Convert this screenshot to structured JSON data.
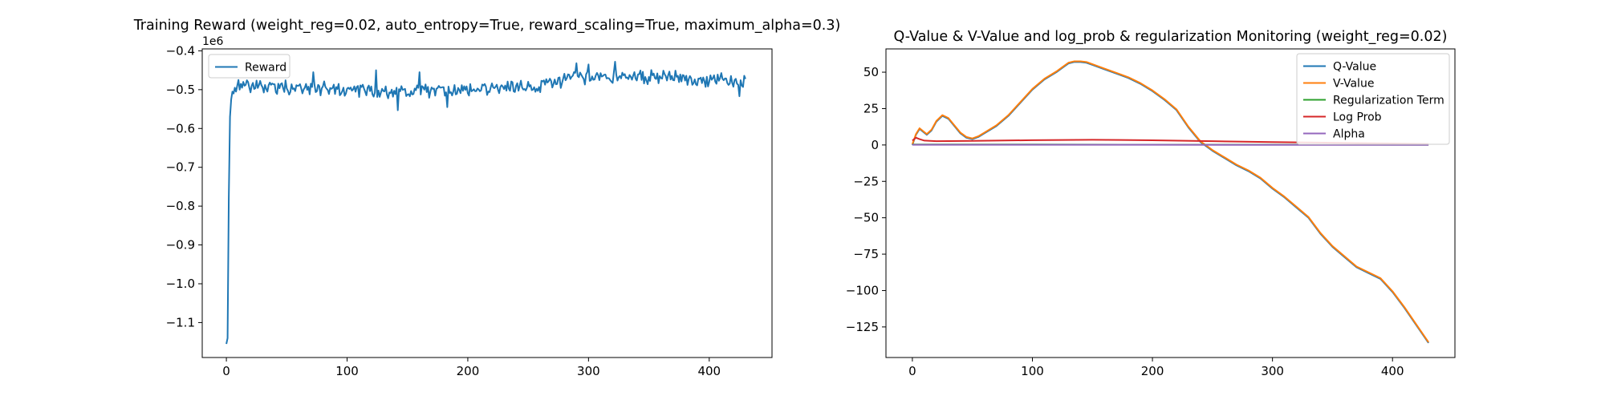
{
  "chart_data": [
    {
      "type": "line",
      "title": "Training Reward (weight_reg=0.02, auto_entropy=True, reward_scaling=True, maximum_alpha=0.3)",
      "xlabel": "",
      "ylabel": "",
      "y_offset_label": "1e6",
      "xlim": [
        -20,
        452
      ],
      "ylim": [
        -1.19,
        -0.395
      ],
      "xticks": [
        0,
        100,
        200,
        300,
        400
      ],
      "yticks": [
        -1.1,
        -1.0,
        -0.9,
        -0.8,
        -0.7,
        -0.6,
        -0.5,
        -0.4
      ],
      "xtick_labels": [
        "0",
        "100",
        "200",
        "300",
        "400"
      ],
      "ytick_labels": [
        "−1.1",
        "−1.0",
        "−0.9",
        "−0.8",
        "−0.7",
        "−0.6",
        "−0.5",
        "−0.4"
      ],
      "legend_position": "upper-left",
      "grid": false,
      "series": [
        {
          "name": "Reward",
          "color": "#1f77b4",
          "x_start": 0,
          "x_end": 430,
          "head": [
            [
              0,
              -1.155
            ],
            [
              1,
              -1.14
            ],
            [
              2,
              -0.78
            ],
            [
              3,
              -0.57
            ],
            [
              4,
              -0.525
            ],
            [
              5,
              -0.505
            ],
            [
              6,
              -0.51
            ],
            [
              7,
              -0.495
            ],
            [
              8,
              -0.505
            ],
            [
              9,
              -0.49
            ],
            [
              10,
              -0.475
            ],
            [
              11,
              -0.5
            ],
            [
              12,
              -0.485
            ],
            [
              13,
              -0.495
            ],
            [
              14,
              -0.48
            ],
            [
              15,
              -0.49
            ]
          ],
          "trend": [
            [
              15,
              -0.49
            ],
            [
              60,
              -0.495
            ],
            [
              150,
              -0.505
            ],
            [
              250,
              -0.495
            ],
            [
              290,
              -0.47
            ],
            [
              340,
              -0.465
            ],
            [
              380,
              -0.47
            ],
            [
              430,
              -0.48
            ]
          ],
          "noise_amplitude": 0.014,
          "spikes": [
            [
              72,
              -0.455
            ],
            [
              124,
              -0.45
            ],
            [
              142,
              -0.553
            ],
            [
              160,
              -0.455
            ],
            [
              183,
              -0.545
            ],
            [
              290,
              -0.432
            ],
            [
              300,
              -0.435
            ],
            [
              322,
              -0.428
            ],
            [
              425,
              -0.517
            ]
          ]
        }
      ]
    },
    {
      "type": "line",
      "title": "Q-Value & V-Value and log_prob & regularization Monitoring (weight_reg=0.02)",
      "xlabel": "",
      "ylabel": "",
      "xlim": [
        -22,
        452
      ],
      "ylim": [
        -146,
        66
      ],
      "xticks": [
        0,
        100,
        200,
        300,
        400
      ],
      "yticks": [
        -125,
        -100,
        -75,
        -50,
        -25,
        0,
        25,
        50
      ],
      "xtick_labels": [
        "0",
        "100",
        "200",
        "300",
        "400"
      ],
      "ytick_labels": [
        "−125",
        "−100",
        "−75",
        "−50",
        "−25",
        "0",
        "25",
        "50"
      ],
      "legend_position": "upper-right",
      "grid": false,
      "series": [
        {
          "name": "Q-Value",
          "color": "#1f77b4",
          "points": [
            [
              0,
              0
            ],
            [
              3,
              7
            ],
            [
              6,
              11
            ],
            [
              9,
              9
            ],
            [
              12,
              7
            ],
            [
              16,
              10
            ],
            [
              20,
              16
            ],
            [
              25,
              20
            ],
            [
              30,
              18
            ],
            [
              35,
              13
            ],
            [
              40,
              8
            ],
            [
              45,
              5
            ],
            [
              50,
              4
            ],
            [
              55,
              5.5
            ],
            [
              60,
              8
            ],
            [
              70,
              13
            ],
            [
              80,
              20
            ],
            [
              90,
              29
            ],
            [
              100,
              38
            ],
            [
              110,
              45
            ],
            [
              120,
              50
            ],
            [
              125,
              53
            ],
            [
              130,
              56
            ],
            [
              135,
              57
            ],
            [
              140,
              57
            ],
            [
              145,
              56.5
            ],
            [
              150,
              55
            ],
            [
              160,
              52
            ],
            [
              170,
              49
            ],
            [
              180,
              46
            ],
            [
              190,
              42
            ],
            [
              200,
              37
            ],
            [
              210,
              31
            ],
            [
              220,
              24
            ],
            [
              230,
              12
            ],
            [
              240,
              2
            ],
            [
              250,
              -4
            ],
            [
              260,
              -9
            ],
            [
              270,
              -14
            ],
            [
              280,
              -18
            ],
            [
              290,
              -23
            ],
            [
              300,
              -30
            ],
            [
              310,
              -36
            ],
            [
              320,
              -43
            ],
            [
              330,
              -50
            ],
            [
              340,
              -61
            ],
            [
              350,
              -70
            ],
            [
              360,
              -77
            ],
            [
              370,
              -84
            ],
            [
              380,
              -88
            ],
            [
              390,
              -92
            ],
            [
              400,
              -101
            ],
            [
              410,
              -112
            ],
            [
              420,
              -124
            ],
            [
              430,
              -136
            ]
          ]
        },
        {
          "name": "V-Value",
          "color": "#ff7f0e",
          "points": [
            [
              0,
              0.5
            ],
            [
              3,
              7.5
            ],
            [
              6,
              11.5
            ],
            [
              9,
              9.5
            ],
            [
              12,
              7.5
            ],
            [
              16,
              10.5
            ],
            [
              20,
              16.5
            ],
            [
              25,
              20.5
            ],
            [
              30,
              18.5
            ],
            [
              35,
              13.5
            ],
            [
              40,
              8.5
            ],
            [
              45,
              5.5
            ],
            [
              50,
              4.5
            ],
            [
              55,
              6
            ],
            [
              60,
              8.5
            ],
            [
              70,
              13.5
            ],
            [
              80,
              20.5
            ],
            [
              90,
              29.5
            ],
            [
              100,
              38.5
            ],
            [
              110,
              45.5
            ],
            [
              120,
              50.5
            ],
            [
              125,
              53.5
            ],
            [
              130,
              56.5
            ],
            [
              135,
              57.5
            ],
            [
              140,
              57.5
            ],
            [
              145,
              57
            ],
            [
              150,
              55.5
            ],
            [
              160,
              52.5
            ],
            [
              170,
              49.5
            ],
            [
              180,
              46.5
            ],
            [
              190,
              42.5
            ],
            [
              200,
              37.5
            ],
            [
              210,
              31.5
            ],
            [
              220,
              24.5
            ],
            [
              230,
              12.5
            ],
            [
              240,
              2.5
            ],
            [
              250,
              -3.5
            ],
            [
              260,
              -8.5
            ],
            [
              270,
              -13.5
            ],
            [
              280,
              -17.5
            ],
            [
              290,
              -22.5
            ],
            [
              300,
              -29.5
            ],
            [
              310,
              -35.5
            ],
            [
              320,
              -42.5
            ],
            [
              330,
              -49.5
            ],
            [
              340,
              -60.5
            ],
            [
              350,
              -69.5
            ],
            [
              360,
              -76.5
            ],
            [
              370,
              -83.5
            ],
            [
              380,
              -87.5
            ],
            [
              390,
              -91.5
            ],
            [
              400,
              -100.5
            ],
            [
              410,
              -111.5
            ],
            [
              420,
              -123.5
            ],
            [
              430,
              -135.5
            ]
          ]
        },
        {
          "name": "Regularization Term",
          "color": "#2ca02c",
          "points": [
            [
              0,
              0.3
            ],
            [
              100,
              0.3
            ],
            [
              200,
              0.2
            ],
            [
              300,
              0.2
            ],
            [
              430,
              0.1
            ]
          ]
        },
        {
          "name": "Log Prob",
          "color": "#d62728",
          "points": [
            [
              0,
              3
            ],
            [
              3,
              5
            ],
            [
              6,
              4
            ],
            [
              10,
              3
            ],
            [
              20,
              2.6
            ],
            [
              50,
              2.8
            ],
            [
              100,
              3.3
            ],
            [
              150,
              3.6
            ],
            [
              200,
              3.2
            ],
            [
              250,
              2.6
            ],
            [
              300,
              2.0
            ],
            [
              350,
              1.5
            ],
            [
              400,
              1.0
            ],
            [
              430,
              0.7
            ]
          ]
        },
        {
          "name": "Alpha",
          "color": "#9467bd",
          "points": [
            [
              0,
              0.1
            ],
            [
              100,
              0.1
            ],
            [
              200,
              0.1
            ],
            [
              300,
              0.05
            ],
            [
              430,
              0.05
            ]
          ]
        }
      ]
    }
  ]
}
